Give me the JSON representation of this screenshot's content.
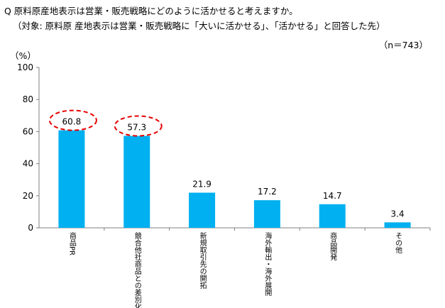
{
  "header": {
    "question": "Q 原料原産地表示は営業・販売戦略にどのように活かせると考えますか。",
    "subject": "（対象: 原料原 産地表示は営業・販売戦略に「大いに活かせる」、「活かせる」と回答した先）",
    "sample": "（n＝743）"
  },
  "chart_data": {
    "type": "bar",
    "title": "",
    "ylabel": "（%）",
    "xlabel": "",
    "ylim": [
      0,
      100
    ],
    "yticks": [
      0,
      20,
      40,
      60,
      80,
      100
    ],
    "grid": false,
    "categories": [
      "商品PR",
      "競合他社商品との差別化",
      "新規取引先の開拓",
      "海外輸出・海外展開",
      "商品開発",
      "その他"
    ],
    "values": [
      60.8,
      57.3,
      21.9,
      17.2,
      14.7,
      3.4
    ],
    "highlighted": [
      0,
      1
    ],
    "bar_color": "#00b0f0",
    "highlight_color": "#e60000"
  }
}
